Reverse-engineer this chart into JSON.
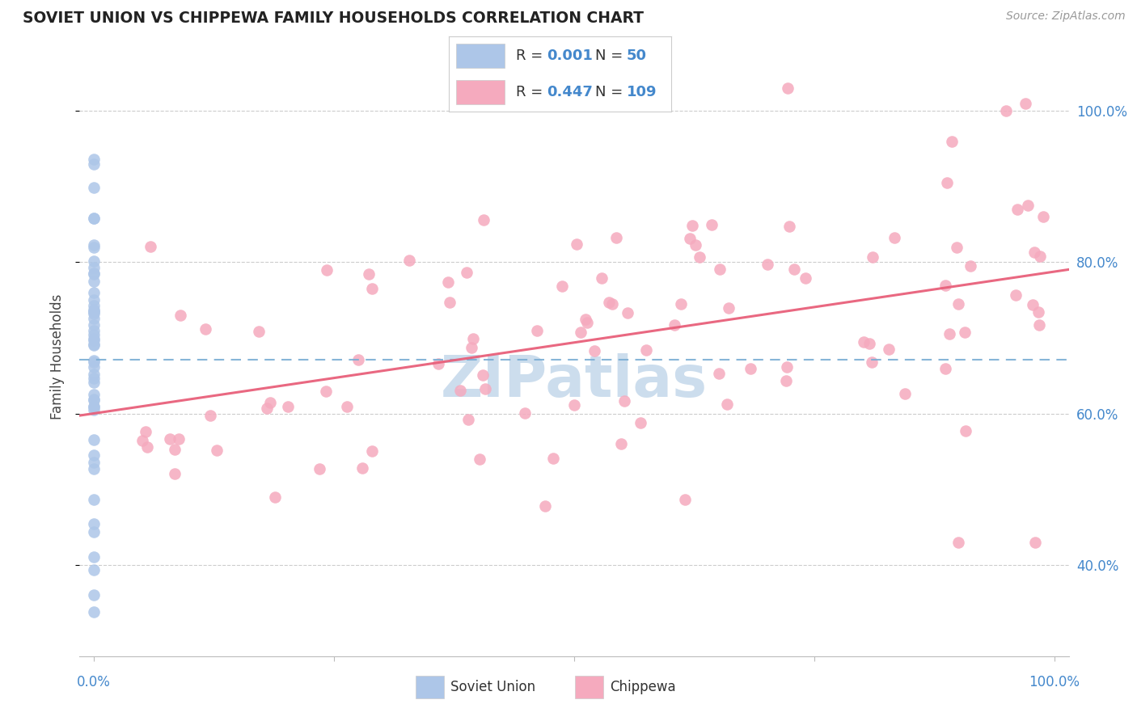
{
  "title": "SOVIET UNION VS CHIPPEWA FAMILY HOUSEHOLDS CORRELATION CHART",
  "source": "Source: ZipAtlas.com",
  "ylabel": "Family Households",
  "legend_blue_r": "0.001",
  "legend_blue_n": "50",
  "legend_pink_r": "0.447",
  "legend_pink_n": "109",
  "blue_color": "#adc6e8",
  "pink_color": "#f5aabe",
  "blue_line_color": "#7aadd4",
  "pink_line_color": "#e8607a",
  "background_color": "#ffffff",
  "grid_color": "#cccccc",
  "title_color": "#222222",
  "axis_label_color": "#4488cc",
  "source_color": "#999999",
  "watermark_color": "#ccdded",
  "ytick_vals": [
    0.4,
    0.6,
    0.8,
    1.0
  ],
  "ytick_labels": [
    "40.0%",
    "60.0%",
    "80.0%",
    "100.0%"
  ],
  "xlim": [
    -0.015,
    1.015
  ],
  "ylim": [
    0.28,
    1.07
  ]
}
